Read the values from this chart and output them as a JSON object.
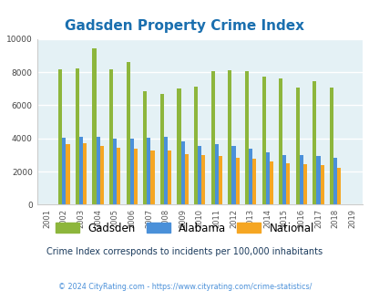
{
  "title": "Gadsden Property Crime Index",
  "years": [
    2001,
    2002,
    2003,
    2004,
    2005,
    2006,
    2007,
    2008,
    2009,
    2010,
    2011,
    2012,
    2013,
    2014,
    2015,
    2016,
    2017,
    2018,
    2019
  ],
  "gadsden": [
    0,
    8150,
    8250,
    9450,
    8200,
    8600,
    6850,
    6700,
    7000,
    7150,
    8050,
    8100,
    8050,
    7750,
    7600,
    7050,
    7450,
    7100,
    0
  ],
  "alabama": [
    0,
    4050,
    4100,
    4100,
    4000,
    4000,
    4050,
    4100,
    3850,
    3550,
    3650,
    3550,
    3400,
    3150,
    3000,
    3000,
    2950,
    2850,
    0
  ],
  "national": [
    0,
    3650,
    3700,
    3550,
    3450,
    3400,
    3300,
    3250,
    3050,
    3000,
    2950,
    2850,
    2750,
    2600,
    2500,
    2450,
    2400,
    2200,
    0
  ],
  "colors": {
    "gadsden": "#8db63c",
    "alabama": "#4a90d9",
    "national": "#f5a623"
  },
  "ylim": [
    0,
    10000
  ],
  "yticks": [
    0,
    2000,
    4000,
    6000,
    8000,
    10000
  ],
  "bg_color": "#e4f1f5",
  "grid_color": "#ffffff",
  "subtitle": "Crime Index corresponds to incidents per 100,000 inhabitants",
  "footer": "© 2024 CityRating.com - https://www.cityrating.com/crime-statistics/",
  "title_color": "#1a6faf",
  "subtitle_color": "#1a3a5c",
  "footer_color": "#4a90d9"
}
